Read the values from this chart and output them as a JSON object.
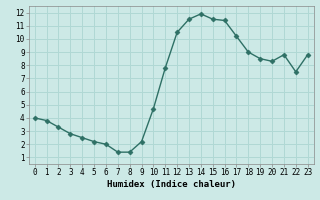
{
  "x": [
    0,
    1,
    2,
    3,
    4,
    5,
    6,
    7,
    8,
    9,
    10,
    11,
    12,
    13,
    14,
    15,
    16,
    17,
    18,
    19,
    20,
    21,
    22,
    23
  ],
  "y": [
    4.0,
    3.8,
    3.3,
    2.8,
    2.5,
    2.2,
    2.0,
    1.4,
    1.4,
    2.2,
    4.7,
    7.8,
    10.5,
    11.5,
    11.9,
    11.5,
    11.4,
    10.2,
    9.0,
    8.5,
    8.3,
    8.8,
    7.5,
    8.8
  ],
  "line_color": "#2e7065",
  "marker": "D",
  "marker_size": 2.5,
  "xlabel": "Humidex (Indice chaleur)",
  "xlim": [
    -0.5,
    23.5
  ],
  "ylim": [
    0.5,
    12.5
  ],
  "yticks": [
    1,
    2,
    3,
    4,
    5,
    6,
    7,
    8,
    9,
    10,
    11,
    12
  ],
  "xticks": [
    0,
    1,
    2,
    3,
    4,
    5,
    6,
    7,
    8,
    9,
    10,
    11,
    12,
    13,
    14,
    15,
    16,
    17,
    18,
    19,
    20,
    21,
    22,
    23
  ],
  "bg_color": "#cce9e6",
  "grid_color": "#b0d8d4",
  "line_width": 1.0,
  "tick_fontsize": 5.5,
  "xlabel_fontsize": 6.5
}
